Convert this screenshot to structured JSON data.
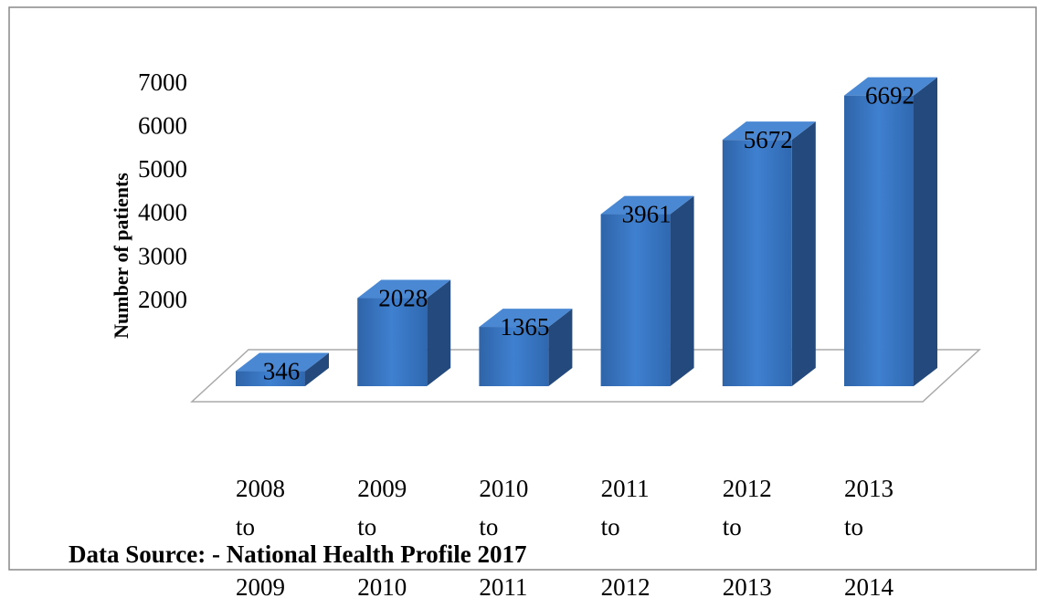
{
  "chart_data": {
    "type": "bar3d",
    "y_label": "Number of patients",
    "source": "Data Source: - National Health Profile 2017",
    "categories": [
      "2008 to 2009",
      "2009 to 2010",
      "2010 to 2011",
      "2011 to 2012",
      "2012 to 2013",
      "2013 to 2014"
    ],
    "values": [
      346,
      2028,
      1365,
      3961,
      5672,
      6692
    ],
    "color": "#3a78c8",
    "ylim": [
      0,
      7000
    ],
    "yticks": [
      2000,
      3000,
      4000,
      5000,
      6000,
      7000
    ]
  }
}
